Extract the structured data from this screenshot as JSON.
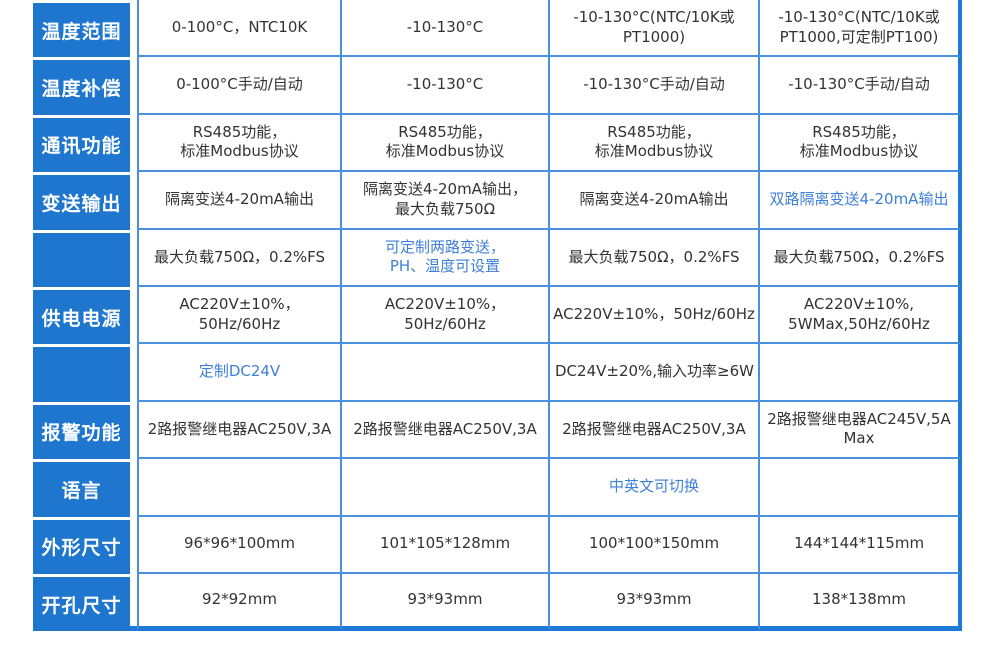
{
  "colors": {
    "header_bg": "#1e76cf",
    "grid_line": "#4a90da",
    "outer_border": "#1c79d8",
    "highlight_text": "#3f80d6",
    "body_text": "#333333"
  },
  "chart_data": {
    "type": "table",
    "columns": 4,
    "legend_note": "4 product variants compared; product name header row is cropped out of view",
    "rows": [
      {
        "key": "temperature-range",
        "header": "温度范围",
        "cells": [
          {
            "text": "0-100°C，NTC10K"
          },
          {
            "text": "-10-130°C"
          },
          {
            "text": "-10-130°C(NTC/10K或PT1000)"
          },
          {
            "text": "-10-130°C(NTC/10K或\nPT1000,可定制PT100)"
          }
        ]
      },
      {
        "key": "temperature-compensation",
        "header": "温度补偿",
        "cells": [
          {
            "text": "0-100°C手动/自动"
          },
          {
            "text": "-10-130°C"
          },
          {
            "text": "-10-130°C手动/自动"
          },
          {
            "text": "-10-130°C手动/自动"
          }
        ]
      },
      {
        "key": "communication",
        "header": "通讯功能",
        "cells": [
          {
            "text": "RS485功能，\n标准Modbus协议"
          },
          {
            "text": "RS485功能，\n标准Modbus协议"
          },
          {
            "text": "RS485功能，\n标准Modbus协议"
          },
          {
            "text": "RS485功能，\n标准Modbus协议"
          }
        ]
      },
      {
        "key": "transmit-output",
        "header": "变送输出",
        "cells": [
          {
            "text": "隔离变送4-20mA输出"
          },
          {
            "text": "隔离变送4-20mA输出，\n最大负载750Ω"
          },
          {
            "text": "隔离变送4-20mA输出"
          },
          {
            "text": "双路隔离变送4-20mA输出",
            "highlight": true
          }
        ]
      },
      {
        "key": "load-accuracy",
        "header": "",
        "cells": [
          {
            "text": "最大负载750Ω，0.2%FS"
          },
          {
            "text": "可定制两路变送，\nPH、温度可设置",
            "highlight": true
          },
          {
            "text": "最大负载750Ω，0.2%FS"
          },
          {
            "text": "最大负载750Ω，0.2%FS"
          }
        ]
      },
      {
        "key": "power-supply",
        "header": "供电电源",
        "cells": [
          {
            "text": "AC220V±10%，50Hz/60Hz"
          },
          {
            "text": "AC220V±10%，50Hz/60Hz"
          },
          {
            "text": "AC220V±10%，50Hz/60Hz"
          },
          {
            "text": "AC220V±10%,\n5WMax,50Hz/60Hz"
          }
        ]
      },
      {
        "key": "dc-power-option",
        "header": "",
        "cells": [
          {
            "text": "定制DC24V",
            "highlight": true
          },
          {
            "text": ""
          },
          {
            "text": "DC24V±20%,输入功率≥6W",
            "align": "left"
          },
          {
            "text": ""
          }
        ]
      },
      {
        "key": "alarm-function",
        "header": "报警功能",
        "cells": [
          {
            "text": "2路报警继电器AC250V,3A"
          },
          {
            "text": "2路报警继电器AC250V,3A"
          },
          {
            "text": "2路报警继电器AC250V,3A"
          },
          {
            "text": "2路报警继电器AC245V,5A Max"
          }
        ]
      },
      {
        "key": "language",
        "header": "语言",
        "cells": [
          {
            "text": ""
          },
          {
            "text": ""
          },
          {
            "text": "中英文可切换",
            "highlight": true
          },
          {
            "text": ""
          }
        ]
      },
      {
        "key": "outer-dimensions",
        "header": "外形尺寸",
        "cells": [
          {
            "text": "96*96*100mm"
          },
          {
            "text": "101*105*128mm"
          },
          {
            "text": "100*100*150mm"
          },
          {
            "text": "144*144*115mm"
          }
        ]
      },
      {
        "key": "cutout-size",
        "header": "开孔尺寸",
        "cells": [
          {
            "text": "92*92mm"
          },
          {
            "text": "93*93mm"
          },
          {
            "text": "93*93mm"
          },
          {
            "text": "138*138mm"
          }
        ]
      }
    ]
  }
}
